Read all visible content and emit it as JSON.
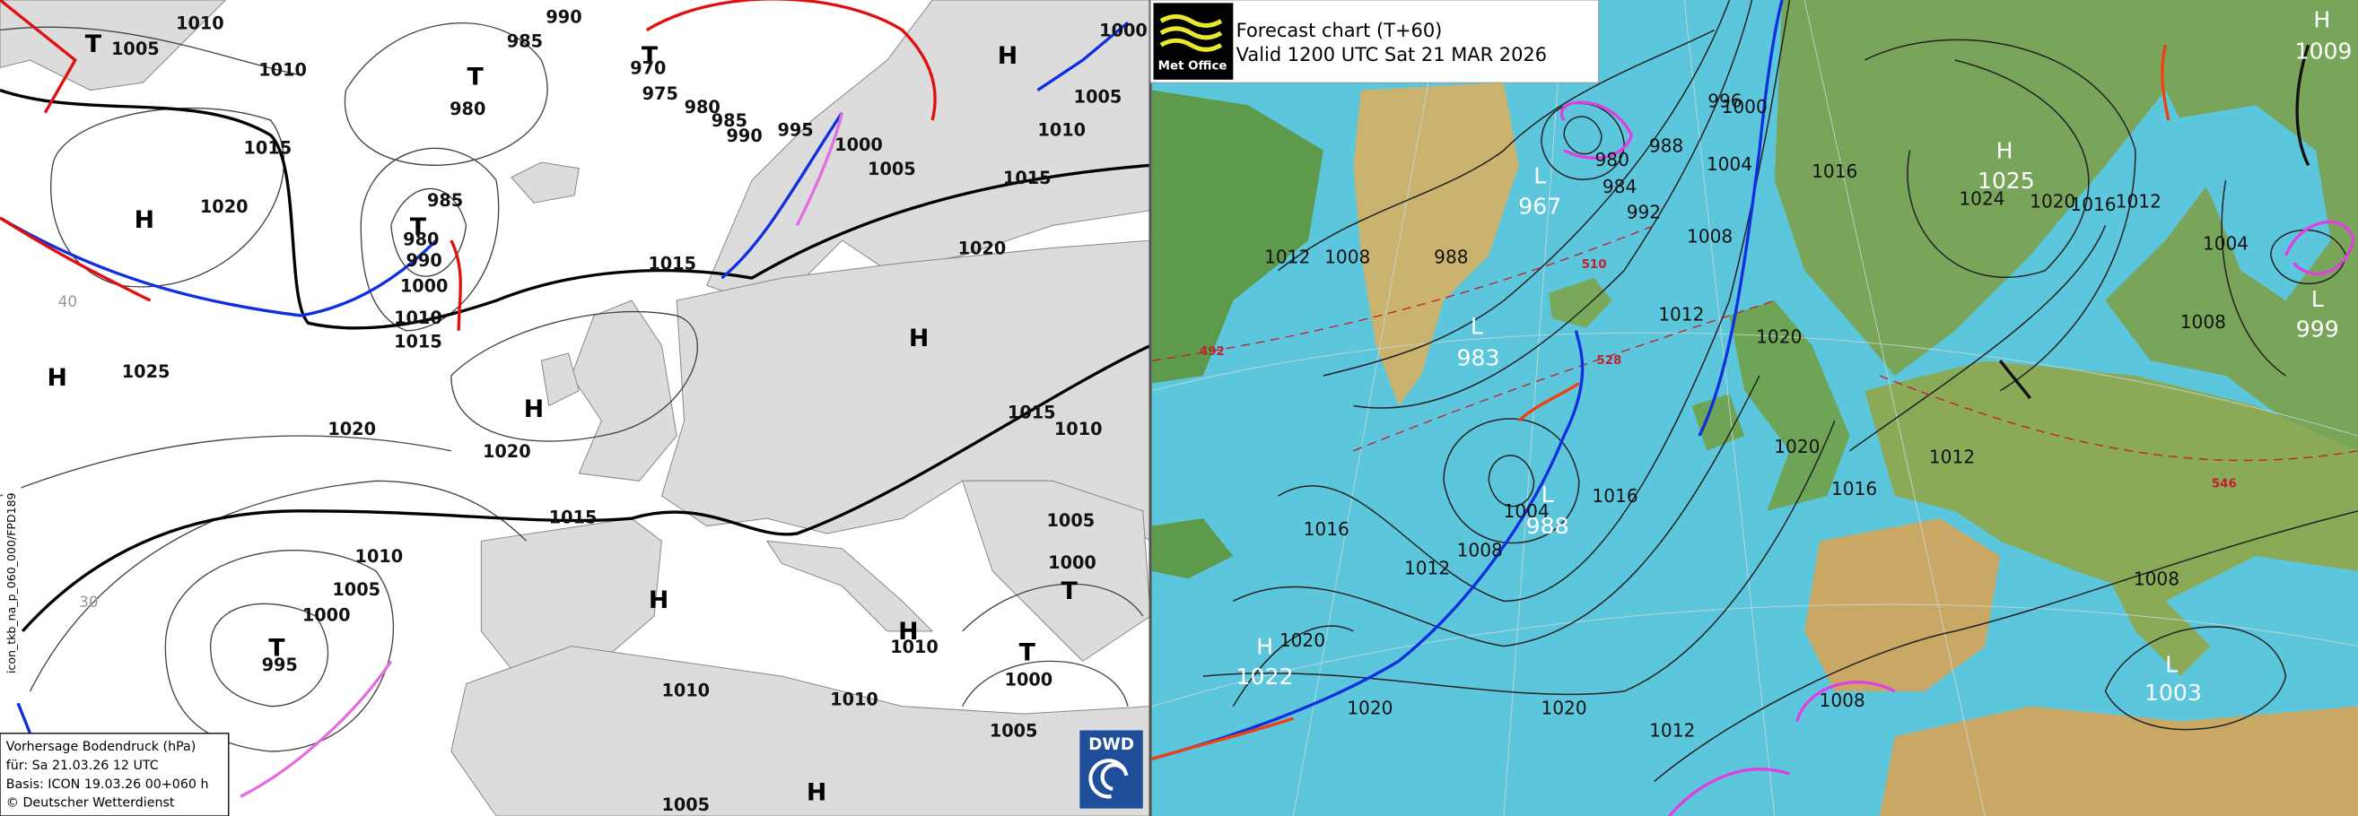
{
  "left": {
    "labels": [
      "T",
      "1005",
      "1010",
      "1010",
      "990",
      "985",
      "T",
      "980",
      "T",
      "970",
      "975",
      "980",
      "985",
      "990",
      "995",
      "1000",
      "1005",
      "1010",
      "1000",
      "1005",
      "H",
      "1015",
      "1020",
      "H",
      "985",
      "T",
      "980",
      "990",
      "1000",
      "1010",
      "1015",
      "1015",
      "1015",
      "1020",
      "H",
      "H",
      "1025",
      "H",
      "1020",
      "1020",
      "1015",
      "1010",
      "1015",
      "1005",
      "1010",
      "1005",
      "1000",
      "T",
      "995",
      "1000",
      "T",
      "H",
      "H",
      "1010",
      "T",
      "1000",
      "1010",
      "1010",
      "1005",
      "1005",
      "H"
    ],
    "latitudes": [
      "40",
      "30"
    ],
    "legend": [
      "Vorhersage Bodendruck (hPa)",
      "für:  Sa  21.03.26  12 UTC",
      "Basis: ICON  19.03.26 00+060 h",
      "© Deutscher Wetterdienst"
    ],
    "code": "icon_tkb_na_p_060_000/FPD189",
    "logo": "DWD"
  },
  "right": {
    "header": {
      "title": "Forecast chart (T+60)",
      "valid": "Valid 1200 UTC Sat 21 MAR 2026"
    },
    "logo": "Met Office",
    "labels": [
      "L",
      "967",
      "980",
      "984",
      "988",
      "992",
      "996",
      "1000",
      "1004",
      "1008",
      "1012",
      "1016",
      "1020",
      "1020",
      "1016",
      "1012",
      "H",
      "1025",
      "1024",
      "1020",
      "1016",
      "1012",
      "H",
      "1009",
      "1004",
      "1008",
      "L",
      "999",
      "1012",
      "1008",
      "988",
      "L",
      "983",
      "L",
      "988",
      "1004",
      "1008",
      "1012",
      "1016",
      "1016",
      "1020",
      "H",
      "1022",
      "1020",
      "1020",
      "1012",
      "1008",
      "1008",
      "L",
      "1003",
      "492",
      "510",
      "528",
      "546"
    ]
  }
}
